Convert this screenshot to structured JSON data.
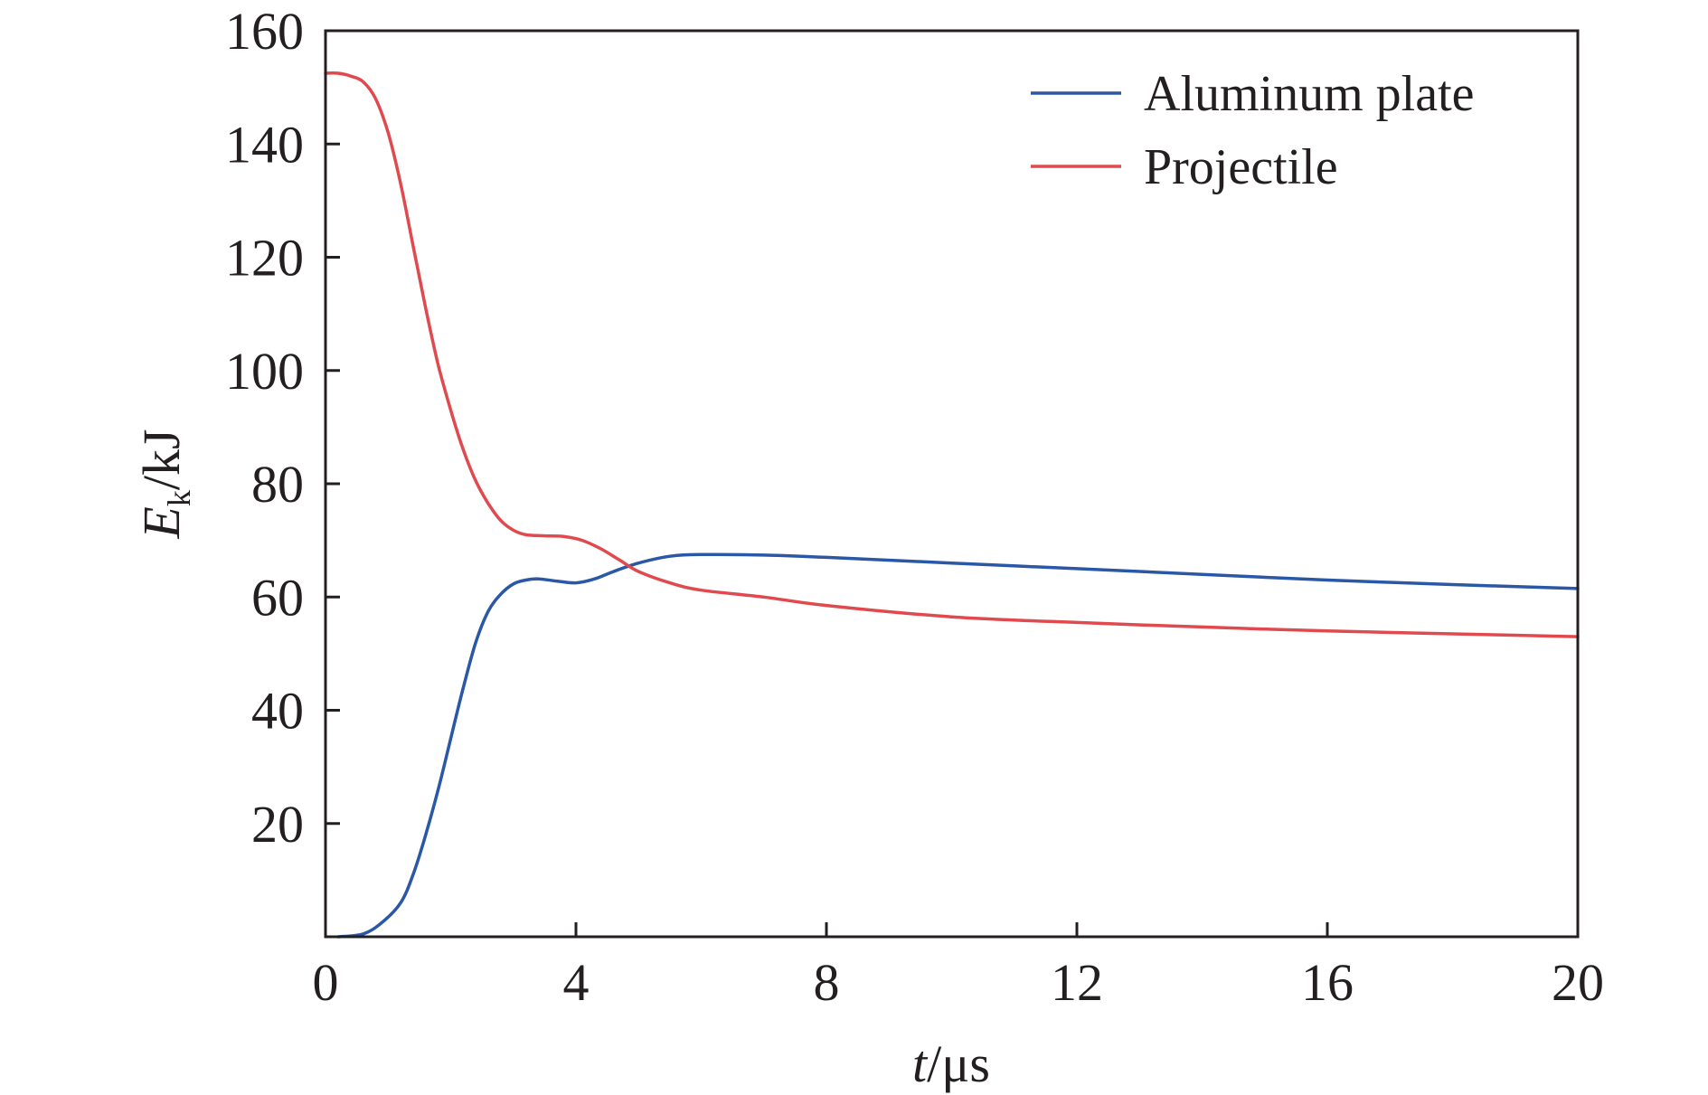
{
  "chart_data": {
    "type": "line",
    "title": "",
    "xlabel": {
      "symbol": "t",
      "unit": "/μs"
    },
    "ylabel": {
      "symbol": "E",
      "subscript": "k",
      "unit": "/kJ"
    },
    "xlim": [
      0,
      20
    ],
    "ylim": [
      0,
      160
    ],
    "xticks": [
      0,
      4,
      8,
      12,
      16,
      20
    ],
    "yticks": [
      20,
      40,
      60,
      80,
      100,
      120,
      140,
      160
    ],
    "grid": false,
    "legend_position": "top-right",
    "series": [
      {
        "name": "Aluminum plate",
        "color": "#2a57a6",
        "points": [
          [
            0.2,
            0
          ],
          [
            0.6,
            0.5
          ],
          [
            0.9,
            2.5
          ],
          [
            1.2,
            6
          ],
          [
            1.4,
            11
          ],
          [
            1.6,
            18
          ],
          [
            1.8,
            26
          ],
          [
            2.0,
            35
          ],
          [
            2.2,
            44
          ],
          [
            2.4,
            52
          ],
          [
            2.6,
            57.5
          ],
          [
            2.8,
            60.5
          ],
          [
            3.0,
            62.3
          ],
          [
            3.2,
            63
          ],
          [
            3.4,
            63.2
          ],
          [
            3.7,
            62.8
          ],
          [
            4.0,
            62.5
          ],
          [
            4.3,
            63.2
          ],
          [
            4.6,
            64.5
          ],
          [
            5.0,
            66
          ],
          [
            5.5,
            67.2
          ],
          [
            6.0,
            67.5
          ],
          [
            7.0,
            67.4
          ],
          [
            8.0,
            67
          ],
          [
            10,
            66
          ],
          [
            12,
            65
          ],
          [
            14,
            64
          ],
          [
            16,
            63
          ],
          [
            18,
            62.2
          ],
          [
            20,
            61.5
          ]
        ]
      },
      {
        "name": "Projectile",
        "color": "#e04a4f",
        "points": [
          [
            0.0,
            152.5
          ],
          [
            0.2,
            152.5
          ],
          [
            0.4,
            152
          ],
          [
            0.6,
            151
          ],
          [
            0.8,
            148
          ],
          [
            1.0,
            142
          ],
          [
            1.2,
            133
          ],
          [
            1.4,
            122
          ],
          [
            1.6,
            111
          ],
          [
            1.8,
            101
          ],
          [
            2.0,
            93
          ],
          [
            2.2,
            86
          ],
          [
            2.4,
            80.5
          ],
          [
            2.6,
            76.5
          ],
          [
            2.8,
            73.5
          ],
          [
            3.0,
            71.8
          ],
          [
            3.2,
            71
          ],
          [
            3.5,
            70.8
          ],
          [
            3.8,
            70.7
          ],
          [
            4.1,
            70
          ],
          [
            4.4,
            68.5
          ],
          [
            4.7,
            66.5
          ],
          [
            5.0,
            64.5
          ],
          [
            5.5,
            62.5
          ],
          [
            6.0,
            61.2
          ],
          [
            7.0,
            60
          ],
          [
            8.0,
            58.5
          ],
          [
            10,
            56.5
          ],
          [
            12,
            55.5
          ],
          [
            14,
            54.7
          ],
          [
            16,
            54
          ],
          [
            18,
            53.5
          ],
          [
            20,
            53
          ]
        ]
      }
    ]
  }
}
